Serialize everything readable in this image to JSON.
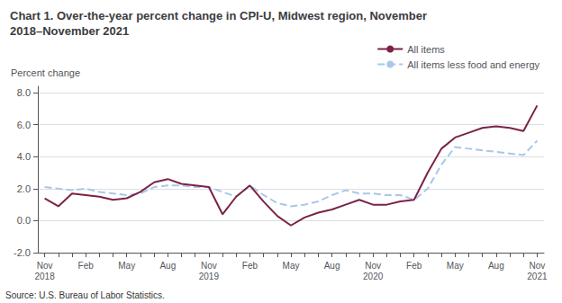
{
  "chart_data": {
    "type": "line",
    "title": "Chart 1. Over-the-year percent change in CPI-U, Midwest region, November\n2018–November 2021",
    "ylabel": "Percent change",
    "source": "Source: U.S. Bureau of Labor Statistics.",
    "categories": [
      "Nov\n2018",
      null,
      null,
      "Feb",
      null,
      null,
      "May",
      null,
      null,
      "Aug",
      null,
      null,
      "Nov\n2019",
      null,
      null,
      "Feb",
      null,
      null,
      "May",
      null,
      null,
      "Aug",
      null,
      null,
      "Nov\n2020",
      null,
      null,
      "Feb",
      null,
      null,
      "May",
      null,
      null,
      "Aug",
      null,
      null,
      "Nov\n2021"
    ],
    "series": [
      {
        "name": "All items",
        "color": "#7B2346",
        "line_style": "solid",
        "values": [
          1.4,
          0.9,
          1.7,
          1.6,
          1.5,
          1.3,
          1.4,
          1.8,
          2.4,
          2.6,
          2.3,
          2.2,
          2.1,
          0.4,
          1.5,
          2.2,
          1.2,
          0.3,
          -0.3,
          0.2,
          0.5,
          0.7,
          1.0,
          1.3,
          1.0,
          1.0,
          1.2,
          1.3,
          3.0,
          4.5,
          5.2,
          5.5,
          5.8,
          5.9,
          5.8,
          5.6,
          7.2
        ]
      },
      {
        "name": "All items less food and energy",
        "color": "#A8C8E8",
        "line_style": "dashed",
        "values": [
          2.1,
          2.0,
          1.9,
          2.0,
          1.8,
          1.7,
          1.6,
          1.7,
          2.1,
          2.2,
          2.2,
          2.1,
          2.1,
          1.8,
          1.5,
          2.2,
          1.6,
          1.1,
          0.9,
          1.0,
          1.2,
          1.6,
          1.9,
          1.7,
          1.7,
          1.6,
          1.6,
          1.3,
          2.0,
          3.5,
          4.6,
          4.5,
          4.4,
          4.3,
          4.2,
          4.1,
          5.0
        ]
      }
    ],
    "ylim": [
      -2.0,
      8.4
    ],
    "yticks": [
      {
        "value": -2.0,
        "label": "-2.0"
      },
      {
        "value": 0.0,
        "label": "0.0"
      },
      {
        "value": 2.0,
        "label": "2.0"
      },
      {
        "value": 4.0,
        "label": "4.0"
      },
      {
        "value": 6.0,
        "label": "6.0"
      },
      {
        "value": 8.0,
        "label": "8.0"
      }
    ],
    "grid": true,
    "legend": "upper right"
  }
}
